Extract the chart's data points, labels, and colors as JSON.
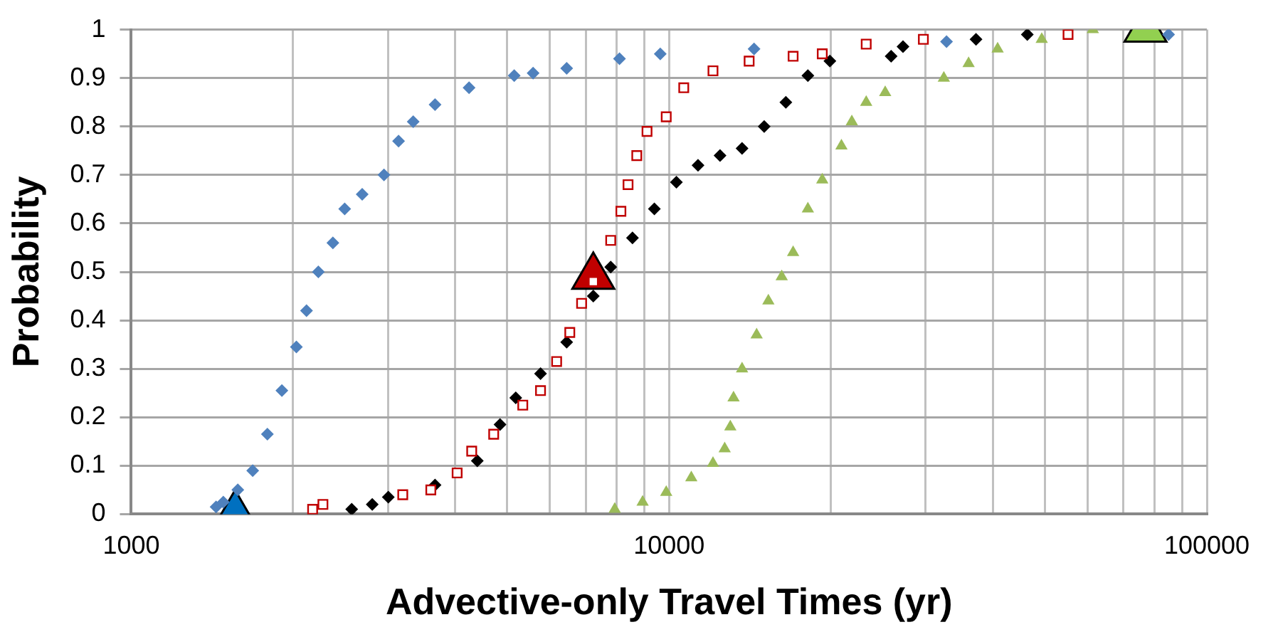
{
  "chart_data": {
    "type": "scatter",
    "xlabel": "Advective-only Travel Times (yr)",
    "ylabel": "Probability",
    "log": "x",
    "grid": true,
    "legend": false,
    "xlim": [
      1000,
      100000
    ],
    "xticks": [
      1000,
      {
        "value": 2000,
        "label": null
      },
      {
        "value": 3000,
        "label": null
      },
      {
        "value": 4000,
        "label": null
      },
      {
        "value": 5000,
        "label": null
      },
      {
        "value": 6000,
        "label": null
      },
      {
        "value": 7000,
        "label": null
      },
      {
        "value": 8000,
        "label": null
      },
      {
        "value": 9000,
        "label": null
      },
      10000,
      {
        "value": 20000,
        "label": null
      },
      {
        "value": 30000,
        "label": null
      },
      {
        "value": 40000,
        "label": null
      },
      {
        "value": 50000,
        "label": null
      },
      {
        "value": 60000,
        "label": null
      },
      {
        "value": 70000,
        "label": null
      },
      {
        "value": 80000,
        "label": null
      },
      {
        "value": 90000,
        "label": null
      },
      100000
    ],
    "ylim": [
      0,
      1
    ],
    "yticks": [
      0,
      0.1,
      0.2,
      0.3,
      0.4,
      0.5,
      0.6,
      0.7,
      0.8,
      0.9,
      1
    ],
    "series": [
      {
        "color": "#4f81bd",
        "marker": "diamond",
        "x": [
          1438,
          1483,
          1578,
          1682,
          1791,
          1906,
          2028,
          2118,
          2228,
          2371,
          2494,
          2688,
          2951,
          3141,
          3344,
          3672,
          4248,
          5153,
          5588,
          6452,
          8088,
          9631,
          14390,
          32810,
          84900
        ],
        "values": [
          0.015,
          0.025,
          0.05,
          0.09,
          0.165,
          0.255,
          0.345,
          0.42,
          0.5,
          0.56,
          0.63,
          0.66,
          0.7,
          0.77,
          0.81,
          0.845,
          0.88,
          0.905,
          0.91,
          0.92,
          0.94,
          0.95,
          0.96,
          0.975,
          0.99
        ]
      },
      {
        "color": "#c00000",
        "marker": "square",
        "x": [
          2174,
          2272,
          3198,
          3606,
          4036,
          4296,
          4720,
          5346,
          5768,
          6180,
          6538,
          6877,
          7230,
          7790,
          8137,
          8390,
          8710,
          9100,
          9880,
          10650,
          12070,
          14090,
          17010,
          19270,
          23260,
          29710,
          55200
        ],
        "values": [
          0.01,
          0.02,
          0.04,
          0.05,
          0.085,
          0.13,
          0.165,
          0.225,
          0.255,
          0.315,
          0.375,
          0.435,
          0.48,
          0.565,
          0.625,
          0.68,
          0.74,
          0.79,
          0.82,
          0.88,
          0.915,
          0.935,
          0.945,
          0.95,
          0.97,
          0.98,
          0.99
        ]
      },
      {
        "color": "#000000",
        "marker": "diamond",
        "x": [
          2570,
          2806,
          3006,
          3672,
          4400,
          4850,
          5188,
          5768,
          6452,
          7230,
          7790,
          8550,
          9390,
          10320,
          11320,
          12440,
          13670,
          15030,
          16490,
          18120,
          19910,
          25880,
          27230,
          37220,
          46360
        ],
        "values": [
          0.01,
          0.02,
          0.035,
          0.06,
          0.11,
          0.185,
          0.24,
          0.29,
          0.355,
          0.45,
          0.51,
          0.57,
          0.63,
          0.685,
          0.72,
          0.74,
          0.755,
          0.8,
          0.85,
          0.905,
          0.935,
          0.945,
          0.965,
          0.98,
          0.99
        ]
      },
      {
        "color": "#9bbb59",
        "marker": "triangle",
        "x": [
          7925,
          8930,
          9880,
          11000,
          12070,
          12690,
          13000,
          13180,
          13670,
          14550,
          15300,
          16200,
          17010,
          18120,
          19270,
          20920,
          21870,
          23260,
          25230,
          32430,
          36060,
          40830,
          49320,
          61380
        ],
        "values": [
          0.01,
          0.025,
          0.045,
          0.075,
          0.105,
          0.135,
          0.18,
          0.24,
          0.3,
          0.37,
          0.44,
          0.49,
          0.54,
          0.63,
          0.69,
          0.76,
          0.81,
          0.85,
          0.87,
          0.9,
          0.93,
          0.96,
          0.98,
          1
        ]
      },
      {
        "color": "#0070c0",
        "marker": "triangle",
        "x": [
          1560
        ],
        "values": [
          0
        ]
      },
      {
        "color": "#c00000",
        "marker": "triangle",
        "x": [
          7230
        ],
        "values": [
          0.49
        ]
      },
      {
        "color": "#92d050",
        "marker": "triangle",
        "x": [
          76900
        ],
        "values": [
          1
        ]
      }
    ]
  }
}
